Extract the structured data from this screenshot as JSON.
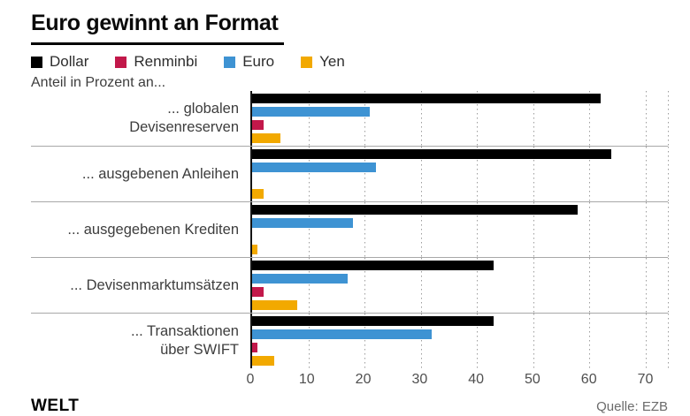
{
  "chart_data": {
    "type": "bar",
    "orientation": "horizontal",
    "title": "Euro gewinnt an Format",
    "subtitle": "Anteil in Prozent an...",
    "unit": "Prozent",
    "categories": [
      "... globalen\nDevisenreserven",
      "... ausgebenen Anleihen",
      "... ausgegebenen Krediten",
      "... Devisenmarktumsätzen",
      "... Transaktionen\nüber SWIFT"
    ],
    "series": [
      {
        "name": "Dollar",
        "color": "#000000",
        "values": [
          62,
          64,
          58,
          43,
          43
        ]
      },
      {
        "name": "Euro",
        "color": "#3e93d3",
        "values": [
          21,
          22,
          18,
          17,
          32
        ]
      },
      {
        "name": "Renminbi",
        "color": "#c2184a",
        "values": [
          2,
          0,
          0,
          2,
          1
        ]
      },
      {
        "name": "Yen",
        "color": "#f2a900",
        "values": [
          5,
          2,
          1,
          8,
          4
        ]
      }
    ],
    "bar_display_order": [
      "Dollar",
      "Euro",
      "Renminbi",
      "Yen"
    ],
    "legend_order": [
      "Dollar",
      "Renminbi",
      "Euro",
      "Yen"
    ],
    "xlim": [
      0,
      74
    ],
    "xticks": [
      0,
      10,
      20,
      30,
      40,
      50,
      60,
      70
    ],
    "grid": "dotted-vertical",
    "legend_position": "top"
  },
  "legend": [
    {
      "label": "Dollar",
      "color": "#000000"
    },
    {
      "label": "Renminbi",
      "color": "#c2184a"
    },
    {
      "label": "Euro",
      "color": "#3e93d3"
    },
    {
      "label": "Yen",
      "color": "#f2a900"
    }
  ],
  "footer": {
    "brand": "WELT",
    "source": "Quelle: EZB"
  }
}
